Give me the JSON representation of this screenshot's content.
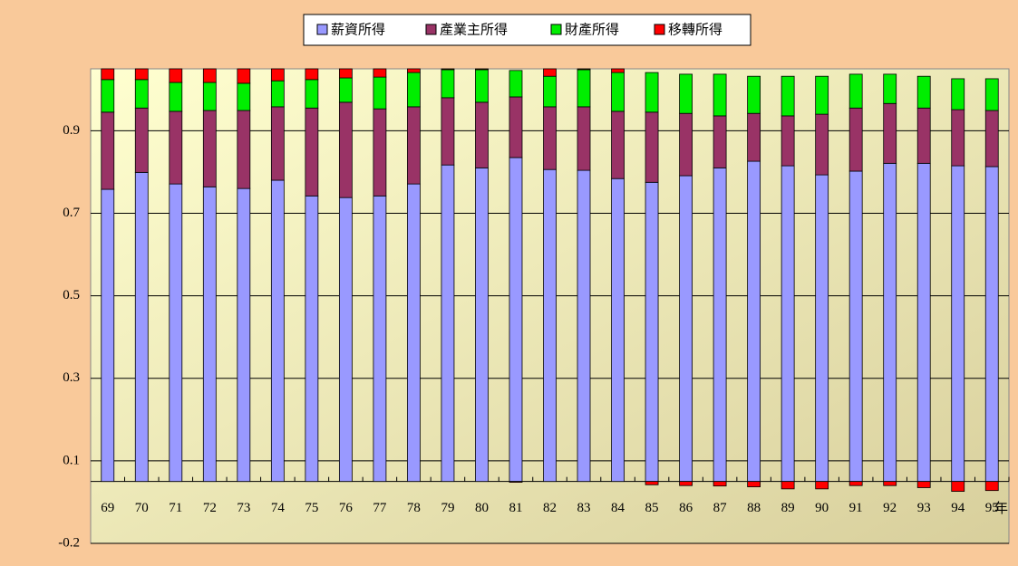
{
  "chart_data": {
    "type": "stacked-bar",
    "x_label": "年",
    "categories": [
      "69",
      "70",
      "71",
      "72",
      "73",
      "74",
      "75",
      "76",
      "77",
      "78",
      "79",
      "80",
      "81",
      "82",
      "83",
      "84",
      "85",
      "86",
      "87",
      "88",
      "89",
      "90",
      "91",
      "92",
      "93",
      "94",
      "95"
    ],
    "series": [
      {
        "name": "薪資所得",
        "color": "#9999ff",
        "values": [
          0.708,
          0.749,
          0.721,
          0.714,
          0.71,
          0.73,
          0.692,
          0.688,
          0.692,
          0.721,
          0.767,
          0.76,
          0.785,
          0.756,
          0.754,
          0.734,
          0.725,
          0.741,
          0.76,
          0.776,
          0.765,
          0.743,
          0.752,
          0.771,
          0.771,
          0.765,
          0.763
        ]
      },
      {
        "name": "產業主所得",
        "color": "#993366",
        "values": [
          0.187,
          0.156,
          0.176,
          0.185,
          0.189,
          0.178,
          0.213,
          0.231,
          0.211,
          0.187,
          0.163,
          0.159,
          0.147,
          0.152,
          0.154,
          0.163,
          0.17,
          0.151,
          0.126,
          0.116,
          0.121,
          0.147,
          0.153,
          0.145,
          0.134,
          0.136,
          0.136
        ]
      },
      {
        "name": "財產所得",
        "color": "#00ee00",
        "values": [
          0.079,
          0.069,
          0.07,
          0.068,
          0.066,
          0.063,
          0.069,
          0.059,
          0.077,
          0.083,
          0.068,
          0.079,
          0.064,
          0.074,
          0.09,
          0.094,
          0.096,
          0.095,
          0.101,
          0.09,
          0.096,
          0.092,
          0.082,
          0.071,
          0.077,
          0.075,
          0.077
        ]
      },
      {
        "name": "移轉所得",
        "color": "#ff0000",
        "values": [
          0.026,
          0.026,
          0.033,
          0.033,
          0.035,
          0.029,
          0.026,
          0.022,
          0.02,
          0.009,
          0.002,
          0.002,
          -0.002,
          0.018,
          0.002,
          0.009,
          -0.008,
          -0.01,
          -0.011,
          -0.013,
          -0.018,
          -0.018,
          -0.01,
          -0.01,
          -0.015,
          -0.024,
          -0.022
        ]
      }
    ],
    "ylim": [
      -0.15,
      1.0
    ],
    "yticks": [
      {
        "value": -0.15,
        "label": "-0.2"
      },
      {
        "value": 0.05,
        "label": "0.1"
      },
      {
        "value": 0.25,
        "label": "0.3"
      },
      {
        "value": 0.45,
        "label": "0.5"
      },
      {
        "value": 0.65,
        "label": "0.7"
      },
      {
        "value": 0.85,
        "label": "0.9"
      }
    ],
    "grid": true,
    "legend": "top"
  }
}
